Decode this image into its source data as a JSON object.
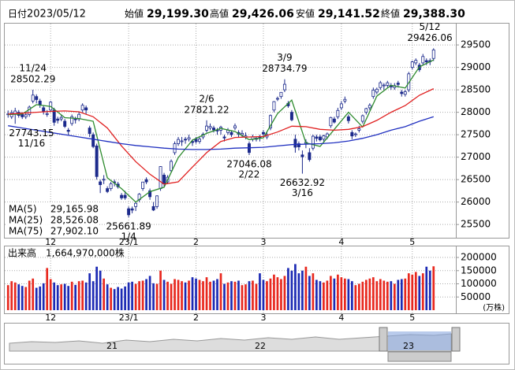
{
  "chart_data": {
    "type": "candlestick",
    "date_label": "日付",
    "date": "2023/05/12",
    "summary": [
      {
        "name": "始値",
        "value": 29199.3,
        "label": "29,199.30",
        "color": "#000000"
      },
      {
        "name": "高値",
        "value": 29426.06,
        "label": "29,426.06",
        "color": "#e02020"
      },
      {
        "name": "安値",
        "value": 29141.52,
        "label": "29,141.52",
        "color": "#108a10"
      },
      {
        "name": "終値",
        "value": 29388.3,
        "label": "29,388.30",
        "color": "#000000"
      }
    ],
    "categories": [
      null,
      null,
      null,
      null,
      null,
      null,
      null,
      null,
      null,
      null,
      null,
      null,
      "12",
      null,
      null,
      null,
      null,
      null,
      null,
      null,
      null,
      null,
      null,
      null,
      null,
      null,
      null,
      null,
      null,
      null,
      null,
      null,
      null,
      null,
      "23/1",
      null,
      null,
      null,
      null,
      null,
      null,
      null,
      null,
      null,
      null,
      null,
      null,
      null,
      null,
      null,
      null,
      null,
      null,
      "2",
      null,
      null,
      null,
      null,
      null,
      null,
      null,
      null,
      null,
      null,
      null,
      null,
      null,
      null,
      null,
      null,
      null,
      null,
      "3",
      null,
      null,
      null,
      null,
      null,
      null,
      null,
      null,
      null,
      null,
      null,
      null,
      null,
      null,
      null,
      null,
      null,
      null,
      null,
      null,
      null,
      "4",
      null,
      null,
      null,
      null,
      null,
      null,
      null,
      null,
      null,
      null,
      null,
      null,
      null,
      null,
      null,
      null,
      null,
      null,
      null,
      "5",
      null,
      null,
      null,
      null,
      null,
      null
    ],
    "ohlc": [
      [
        27950,
        28040,
        27880,
        27963
      ],
      [
        27900,
        28050,
        27850,
        27990
      ],
      [
        27960,
        28100,
        27743.15,
        28028
      ],
      [
        28000,
        28050,
        27880,
        27930
      ],
      [
        27950,
        28000,
        27850,
        27899
      ],
      [
        27900,
        28000,
        27850,
        27944
      ],
      [
        27950,
        28150,
        27900,
        28115
      ],
      [
        28250,
        28502.29,
        28200,
        28383
      ],
      [
        28350,
        28400,
        28200,
        28283
      ],
      [
        28250,
        28300,
        28100,
        28162
      ],
      [
        28100,
        28150,
        27950,
        28027
      ],
      [
        27950,
        28050,
        27900,
        27968
      ],
      [
        28050,
        28250,
        28000,
        28226
      ],
      [
        28050,
        28100,
        27700,
        27777
      ],
      [
        27850,
        27900,
        27750,
        27820
      ],
      [
        27850,
        27950,
        27800,
        27885
      ],
      [
        27800,
        27850,
        27650,
        27686
      ],
      [
        27600,
        27650,
        27500,
        27574
      ],
      [
        27750,
        27950,
        27700,
        27901
      ],
      [
        27850,
        27900,
        27750,
        27842
      ],
      [
        27850,
        28000,
        27800,
        27954
      ],
      [
        28050,
        28200,
        28000,
        28156
      ],
      [
        28100,
        28150,
        27950,
        28051
      ],
      [
        27650,
        27700,
        27450,
        27527
      ],
      [
        27500,
        27550,
        27200,
        27237
      ],
      [
        27250,
        27300,
        26500,
        26568
      ],
      [
        26450,
        26500,
        26200,
        26387
      ],
      [
        26500,
        26600,
        26400,
        26507
      ],
      [
        26300,
        26350,
        26200,
        26235
      ],
      [
        26300,
        26450,
        26250,
        26405
      ],
      [
        26450,
        26500,
        26350,
        26447
      ],
      [
        26400,
        26450,
        26300,
        26340
      ],
      [
        26150,
        26200,
        26050,
        26093
      ],
      [
        26150,
        26250,
        26050,
        26094
      ],
      [
        25850,
        25900,
        25661.89,
        25716
      ],
      [
        25850,
        25900,
        25750,
        25820
      ],
      [
        25900,
        26000,
        25800,
        25973
      ],
      [
        26050,
        26200,
        26000,
        26175
      ],
      [
        26300,
        26450,
        26250,
        26446
      ],
      [
        26500,
        26550,
        26400,
        26449
      ],
      [
        26250,
        26300,
        26050,
        26119
      ],
      [
        25900,
        26000,
        25800,
        25822
      ],
      [
        25900,
        26150,
        25850,
        26138
      ],
      [
        26300,
        26800,
        26250,
        26791
      ],
      [
        26600,
        26650,
        26350,
        26405
      ],
      [
        26450,
        26600,
        26400,
        26553
      ],
      [
        26700,
        26950,
        26650,
        26906
      ],
      [
        27100,
        27350,
        27050,
        27299
      ],
      [
        27300,
        27450,
        27250,
        27395
      ],
      [
        27350,
        27450,
        27250,
        27362
      ],
      [
        27400,
        27450,
        27300,
        27382
      ],
      [
        27400,
        27500,
        27350,
        27433
      ],
      [
        27350,
        27400,
        27250,
        27327
      ],
      [
        27400,
        27450,
        27300,
        27346
      ],
      [
        27350,
        27450,
        27300,
        27402
      ],
      [
        27450,
        27550,
        27400,
        27509
      ],
      [
        27600,
        27821.22,
        27550,
        27693
      ],
      [
        27650,
        27750,
        27600,
        27685
      ],
      [
        27650,
        27700,
        27550,
        27606
      ],
      [
        27600,
        27650,
        27500,
        27584
      ],
      [
        27600,
        27700,
        27500,
        27670
      ],
      [
        27450,
        27500,
        27350,
        27427
      ],
      [
        27550,
        27650,
        27500,
        27602
      ],
      [
        27550,
        27600,
        27450,
        27501
      ],
      [
        27650,
        27750,
        27600,
        27696
      ],
      [
        27550,
        27600,
        27450,
        27513
      ],
      [
        27500,
        27600,
        27450,
        27531
      ],
      [
        27450,
        27550,
        27400,
        27473
      ],
      [
        27300,
        27350,
        27046.08,
        27104
      ],
      [
        27400,
        27500,
        27350,
        27453
      ],
      [
        27400,
        27450,
        27350,
        27423
      ],
      [
        27450,
        27500,
        27350,
        27445
      ],
      [
        27550,
        27600,
        27450,
        27516
      ],
      [
        27450,
        27550,
        27400,
        27498
      ],
      [
        27650,
        27950,
        27600,
        27927
      ],
      [
        28050,
        28250,
        28000,
        28237
      ],
      [
        28300,
        28350,
        28250,
        28309
      ],
      [
        28350,
        28450,
        28300,
        28444
      ],
      [
        28500,
        28734.79,
        28450,
        28623
      ],
      [
        28200,
        28250,
        28100,
        28143
      ],
      [
        28000,
        28050,
        27800,
        27832
      ],
      [
        27400,
        27500,
        27100,
        27222
      ],
      [
        27300,
        27350,
        27150,
        27229
      ],
      [
        27050,
        27150,
        26632.92,
        27010
      ],
      [
        27300,
        27400,
        27200,
        27333
      ],
      [
        27100,
        27200,
        26900,
        26945
      ],
      [
        27200,
        27500,
        27150,
        27466
      ],
      [
        27450,
        27500,
        27350,
        27419
      ],
      [
        27450,
        27500,
        27350,
        27385
      ],
      [
        27400,
        27500,
        27350,
        27476
      ],
      [
        27450,
        27550,
        27400,
        27518
      ],
      [
        27700,
        27900,
        27650,
        27883
      ],
      [
        27850,
        27900,
        27750,
        27782
      ],
      [
        27900,
        28100,
        27850,
        28041
      ],
      [
        28100,
        28250,
        28050,
        28188
      ],
      [
        28250,
        28350,
        28200,
        28287
      ],
      [
        27900,
        27950,
        27750,
        27813
      ],
      [
        27550,
        27600,
        27400,
        27472
      ],
      [
        27500,
        27550,
        27450,
        27518
      ],
      [
        27600,
        27700,
        27550,
        27633
      ],
      [
        27800,
        27950,
        27750,
        27923
      ],
      [
        28000,
        28100,
        27950,
        28082
      ],
      [
        28100,
        28200,
        28050,
        28156
      ],
      [
        28350,
        28550,
        28300,
        28493
      ],
      [
        28450,
        28550,
        28400,
        28514
      ],
      [
        28550,
        28700,
        28500,
        28658
      ],
      [
        28600,
        28650,
        28500,
        28606
      ],
      [
        28600,
        28700,
        28550,
        28657
      ],
      [
        28600,
        28650,
        28500,
        28564
      ],
      [
        28550,
        28650,
        28500,
        28593
      ],
      [
        28650,
        28700,
        28550,
        28620
      ],
      [
        28450,
        28500,
        28350,
        28416
      ],
      [
        28400,
        28500,
        28350,
        28457
      ],
      [
        28500,
        28900,
        28450,
        28856
      ],
      [
        29000,
        29150,
        28950,
        29123
      ],
      [
        29100,
        29200,
        29050,
        29157
      ],
      [
        29050,
        29100,
        28900,
        28949
      ],
      [
        29100,
        29300,
        29050,
        29242
      ],
      [
        29150,
        29200,
        29050,
        29122
      ],
      [
        29150,
        29200,
        29050,
        29126
      ],
      [
        29199.3,
        29426.06,
        29141.52,
        29388.3
      ]
    ],
    "candle_colors": {
      "up": "#ffffff",
      "down": "#1c2a8c",
      "outline": "#1c2a8c"
    },
    "ylim": [
      25240,
      29975
    ],
    "yticks": [
      25500,
      26000,
      26500,
      27000,
      27500,
      28000,
      28500,
      29000,
      29500
    ],
    "grid": true,
    "series": [
      {
        "name": "MA(5)",
        "color": "#2e8b2e",
        "legend": {
          "value": 29165.98,
          "label": "29,165.98"
        },
        "x": [
          0,
          4,
          8,
          12,
          16,
          20,
          24,
          28,
          32,
          36,
          40,
          44,
          48,
          52,
          56,
          60,
          64,
          68,
          72,
          76,
          80,
          84,
          88,
          92,
          96,
          100,
          104,
          108,
          112,
          116,
          120
        ],
        "values": [
          27950,
          27960,
          28170,
          28130,
          27880,
          27860,
          27800,
          26540,
          26300,
          26000,
          26230,
          26330,
          26990,
          27380,
          27530,
          27640,
          27570,
          27390,
          27430,
          27970,
          28270,
          27320,
          27240,
          27620,
          28000,
          27670,
          28360,
          28600,
          28540,
          29010,
          29165.98
        ]
      },
      {
        "name": "MA(25)",
        "color": "#e02020",
        "legend": {
          "value": 28526.08,
          "label": "28,526.08"
        },
        "x": [
          0,
          4,
          8,
          12,
          16,
          20,
          24,
          28,
          32,
          36,
          40,
          44,
          48,
          52,
          56,
          60,
          64,
          68,
          72,
          76,
          80,
          84,
          88,
          92,
          96,
          100,
          104,
          108,
          112,
          116,
          120
        ],
        "values": [
          27960,
          27980,
          28000,
          28020,
          28030,
          28010,
          27900,
          27650,
          27250,
          26900,
          26620,
          26400,
          26450,
          26780,
          27100,
          27350,
          27440,
          27450,
          27460,
          27560,
          27690,
          27680,
          27620,
          27600,
          27620,
          27680,
          27820,
          28000,
          28150,
          28380,
          28526.08
        ]
      },
      {
        "name": "MA(75)",
        "color": "#2030c0",
        "legend": {
          "value": 27902.1,
          "label": "27,902.10"
        },
        "x": [
          0,
          4,
          8,
          12,
          16,
          20,
          24,
          28,
          32,
          36,
          40,
          44,
          48,
          52,
          56,
          60,
          64,
          68,
          72,
          76,
          80,
          84,
          88,
          92,
          96,
          100,
          104,
          108,
          112,
          116,
          120
        ],
        "values": [
          27700,
          27650,
          27600,
          27550,
          27500,
          27450,
          27400,
          27350,
          27300,
          27260,
          27230,
          27200,
          27180,
          27170,
          27170,
          27180,
          27200,
          27210,
          27220,
          27250,
          27280,
          27290,
          27300,
          27320,
          27360,
          27420,
          27500,
          27600,
          27680,
          27800,
          27902.1
        ]
      }
    ],
    "annotations": [
      {
        "date": "11/24",
        "value": 28502.29
      },
      {
        "date": "11/16",
        "value": 27743.15
      },
      {
        "date": "1/4",
        "value": 25661.89
      },
      {
        "date": "2/6",
        "value": 27821.22
      },
      {
        "date": "2/22",
        "value": 27046.08
      },
      {
        "date": "3/9",
        "value": 28734.79
      },
      {
        "date": "3/16",
        "value": 26632.92
      },
      {
        "date": "5/12",
        "value": 29426.06
      }
    ],
    "volume": {
      "title": "出来高",
      "total": {
        "value": 1664970000,
        "label": "1,664,970,000株"
      },
      "unit": "(万株)",
      "colors": {
        "up": "#e8281e",
        "down": "#1c2ab4"
      },
      "ylim": [
        0,
        236000
      ],
      "yticks": [
        50000,
        100000,
        150000,
        200000
      ],
      "values": [
        95000,
        110000,
        105000,
        98000,
        92000,
        88000,
        112000,
        120000,
        85000,
        90000,
        102000,
        160000,
        118000,
        105000,
        95000,
        98000,
        100000,
        92000,
        108000,
        96000,
        110000,
        112000,
        105000,
        140000,
        110000,
        165000,
        150000,
        120000,
        98000,
        85000,
        80000,
        88000,
        82000,
        90000,
        105000,
        108000,
        100000,
        110000,
        112000,
        118000,
        130000,
        102000,
        100000,
        150000,
        115000,
        108000,
        100000,
        118000,
        115000,
        110000,
        105000,
        112000,
        125000,
        120000,
        115000,
        110000,
        125000,
        108000,
        112000,
        118000,
        140000,
        100000,
        105000,
        110000,
        108000,
        112000,
        95000,
        98000,
        110000,
        112000,
        100000,
        140000,
        115000,
        110000,
        120000,
        135000,
        125000,
        118000,
        130000,
        160000,
        150000,
        175000,
        140000,
        150000,
        165000,
        130000,
        140000,
        115000,
        110000,
        105000,
        112000,
        130000,
        120000,
        135000,
        125000,
        120000,
        118000,
        110000,
        95000,
        100000,
        108000,
        115000,
        120000,
        125000,
        110000,
        118000,
        112000,
        108000,
        110000,
        100000,
        115000,
        118000,
        120000,
        140000,
        135000,
        145000,
        130000,
        140000,
        165000,
        150000,
        166497
      ]
    },
    "navigator": {
      "labels": [
        "21",
        "22",
        "23"
      ]
    }
  }
}
